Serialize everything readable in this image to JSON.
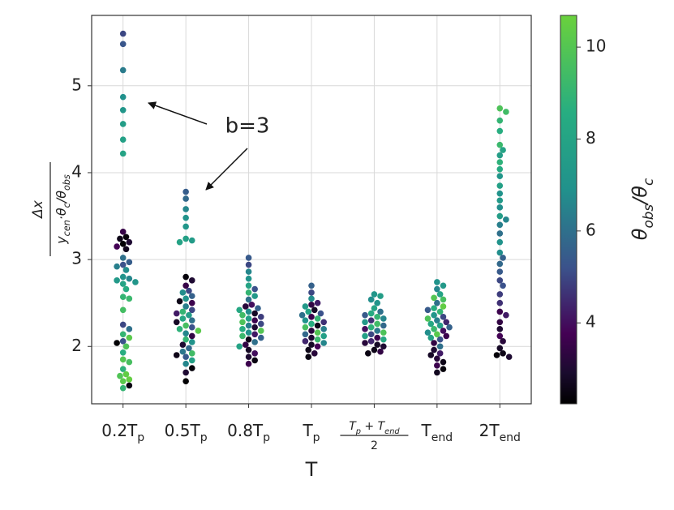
{
  "chart_data": {
    "type": "swarm",
    "xlabel": "T",
    "ylabel": {
      "num": "Δx",
      "den": [
        "y",
        "cen",
        "·θ",
        "c",
        "/θ",
        "obs"
      ]
    },
    "colorbar_label": [
      "θ",
      "obs",
      "/θ",
      "c"
    ],
    "annotation": "b=3",
    "categories": [
      {
        "parts": [
          "0.2T",
          "p"
        ]
      },
      {
        "parts": [
          "0.5T",
          "p"
        ]
      },
      {
        "parts": [
          "0.8T",
          "p"
        ]
      },
      {
        "parts": [
          "T",
          "p"
        ]
      },
      {
        "parts": [
          "T",
          "p",
          " + T",
          "end"
        ],
        "den": "2"
      },
      {
        "parts": [
          "T",
          "end"
        ]
      },
      {
        "parts": [
          "2T",
          "end"
        ]
      }
    ],
    "ylim": [
      1.34,
      5.81
    ],
    "yticks": [
      2,
      3,
      4,
      5
    ],
    "clim": [
      2.24,
      10.69
    ],
    "cticks": [
      4,
      6,
      8,
      10
    ],
    "colormap": "viridis",
    "grid": true,
    "groups": [
      {
        "values": [
          5.6,
          5.48,
          5.18,
          4.87,
          4.72,
          4.56,
          4.38,
          4.22,
          3.32,
          3.26,
          3.24,
          3.2,
          3.18,
          3.15,
          3.12,
          3.02,
          2.97,
          2.94,
          2.92,
          2.88,
          2.8,
          2.78,
          2.76,
          2.74,
          2.72,
          2.66,
          2.57,
          2.55,
          2.42,
          2.25,
          2.2,
          2.14,
          2.1,
          2.06,
          2.04,
          2.0,
          1.93,
          1.85,
          1.82,
          1.74,
          1.68,
          1.66,
          1.62,
          1.6,
          1.55,
          1.52
        ],
        "color_values": [
          5.0,
          5.3,
          6.3,
          6.9,
          7.2,
          7.6,
          7.8,
          8.0,
          3.5,
          2.4,
          2.6,
          3.0,
          2.3,
          3.8,
          2.7,
          6.0,
          5.5,
          5.2,
          6.4,
          6.8,
          7.0,
          6.6,
          7.4,
          7.2,
          8.0,
          8.5,
          9.0,
          9.2,
          9.5,
          5.0,
          6.0,
          9.0,
          10.2,
          5.2,
          2.3,
          9.8,
          8.6,
          10.0,
          9.6,
          8.8,
          10.4,
          9.9,
          10.5,
          10.2,
          2.5,
          9.0
        ]
      },
      {
        "values": [
          3.78,
          3.7,
          3.58,
          3.48,
          3.38,
          3.24,
          3.22,
          3.2,
          2.8,
          2.76,
          2.7,
          2.64,
          2.62,
          2.58,
          2.55,
          2.52,
          2.5,
          2.46,
          2.42,
          2.4,
          2.38,
          2.36,
          2.32,
          2.3,
          2.28,
          2.24,
          2.22,
          2.2,
          2.18,
          2.15,
          2.12,
          2.08,
          2.05,
          2.02,
          1.98,
          1.94,
          1.92,
          1.9,
          1.88,
          1.84,
          1.8,
          1.75,
          1.7,
          1.6
        ],
        "color_values": [
          5.5,
          5.8,
          6.6,
          7.0,
          7.2,
          7.8,
          7.5,
          7.9,
          2.4,
          3.0,
          3.5,
          5.0,
          6.8,
          5.6,
          7.0,
          2.6,
          3.6,
          6.4,
          5.0,
          9.0,
          4.2,
          7.6,
          8.2,
          6.0,
          2.8,
          9.6,
          5.2,
          8.8,
          10.2,
          6.6,
          3.4,
          9.0,
          7.0,
          3.0,
          5.8,
          6.2,
          9.4,
          2.6,
          5.4,
          7.8,
          6.6,
          2.4,
          3.0,
          2.3
        ]
      },
      {
        "values": [
          3.02,
          2.94,
          2.86,
          2.78,
          2.7,
          2.66,
          2.62,
          2.58,
          2.54,
          2.48,
          2.46,
          2.44,
          2.42,
          2.4,
          2.38,
          2.36,
          2.34,
          2.32,
          2.3,
          2.28,
          2.26,
          2.24,
          2.22,
          2.2,
          2.18,
          2.16,
          2.14,
          2.12,
          2.1,
          2.08,
          2.05,
          2.02,
          2.0,
          1.96,
          1.92,
          1.88,
          1.84,
          1.8
        ],
        "color_values": [
          5.4,
          5.0,
          6.6,
          7.0,
          8.0,
          5.2,
          9.0,
          7.4,
          6.0,
          4.0,
          3.2,
          5.6,
          8.2,
          6.8,
          2.8,
          9.4,
          4.8,
          7.8,
          3.6,
          9.8,
          5.0,
          6.4,
          3.0,
          8.6,
          10.0,
          7.0,
          4.2,
          9.2,
          5.6,
          2.6,
          6.0,
          3.4,
          8.0,
          2.8,
          4.0,
          3.0,
          2.5,
          3.6
        ]
      },
      {
        "values": [
          2.7,
          2.62,
          2.55,
          2.5,
          2.48,
          2.46,
          2.42,
          2.4,
          2.38,
          2.36,
          2.34,
          2.32,
          2.3,
          2.28,
          2.26,
          2.24,
          2.22,
          2.2,
          2.18,
          2.16,
          2.14,
          2.12,
          2.1,
          2.08,
          2.06,
          2.04,
          2.02,
          2.0,
          1.96,
          1.92,
          1.88
        ],
        "color_values": [
          5.6,
          5.0,
          6.8,
          4.2,
          3.4,
          7.4,
          2.8,
          8.0,
          5.2,
          6.0,
          3.6,
          9.0,
          7.0,
          4.6,
          8.6,
          2.6,
          9.6,
          6.4,
          3.2,
          10.0,
          5.8,
          7.8,
          3.0,
          9.2,
          4.4,
          6.6,
          2.8,
          3.8,
          2.6,
          3.2,
          2.5
        ]
      },
      {
        "values": [
          2.6,
          2.58,
          2.54,
          2.5,
          2.44,
          2.4,
          2.38,
          2.36,
          2.34,
          2.32,
          2.3,
          2.28,
          2.26,
          2.24,
          2.22,
          2.2,
          2.18,
          2.16,
          2.14,
          2.12,
          2.1,
          2.08,
          2.06,
          2.04,
          2.02,
          2.0,
          1.96,
          1.94,
          1.92
        ],
        "color_values": [
          7.2,
          7.6,
          6.8,
          7.0,
          8.0,
          6.0,
          8.4,
          5.4,
          9.0,
          6.6,
          4.6,
          7.4,
          9.4,
          5.8,
          8.8,
          4.0,
          6.2,
          9.8,
          5.0,
          7.8,
          3.6,
          8.2,
          4.4,
          3.2,
          2.8,
          3.0,
          2.6,
          3.4,
          2.5
        ]
      },
      {
        "values": [
          2.74,
          2.7,
          2.66,
          2.6,
          2.56,
          2.54,
          2.5,
          2.46,
          2.44,
          2.42,
          2.4,
          2.36,
          2.34,
          2.32,
          2.3,
          2.28,
          2.26,
          2.24,
          2.22,
          2.2,
          2.18,
          2.16,
          2.14,
          2.12,
          2.1,
          2.08,
          2.04,
          2.0,
          1.96,
          1.92,
          1.9,
          1.86,
          1.82,
          1.78,
          1.74,
          1.7
        ],
        "color_values": [
          7.0,
          7.4,
          6.6,
          8.0,
          10.0,
          9.6,
          6.0,
          10.4,
          8.6,
          5.4,
          9.0,
          7.2,
          5.0,
          9.8,
          6.4,
          4.4,
          8.2,
          7.6,
          5.6,
          9.2,
          4.0,
          6.8,
          10.2,
          3.6,
          7.8,
          5.2,
          3.4,
          6.0,
          3.0,
          4.2,
          2.8,
          3.2,
          2.6,
          3.6,
          2.4,
          2.7
        ]
      },
      {
        "values": [
          4.74,
          4.7,
          4.6,
          4.48,
          4.32,
          4.26,
          4.2,
          4.12,
          4.04,
          3.96,
          3.85,
          3.76,
          3.68,
          3.6,
          3.5,
          3.46,
          3.4,
          3.3,
          3.2,
          3.08,
          3.02,
          2.95,
          2.86,
          2.76,
          2.7,
          2.6,
          2.5,
          2.4,
          2.36,
          2.28,
          2.2,
          2.12,
          2.06,
          1.98,
          1.92,
          1.9,
          1.88
        ],
        "color_values": [
          9.8,
          9.4,
          9.0,
          8.6,
          9.2,
          8.0,
          7.6,
          8.8,
          8.4,
          7.2,
          7.8,
          7.0,
          7.4,
          6.8,
          7.6,
          6.6,
          6.4,
          6.0,
          7.0,
          6.8,
          5.6,
          5.8,
          5.4,
          5.0,
          5.2,
          4.8,
          4.6,
          3.6,
          4.2,
          3.4,
          3.0,
          3.8,
          3.2,
          2.8,
          2.6,
          2.4,
          3.0
        ]
      }
    ]
  }
}
